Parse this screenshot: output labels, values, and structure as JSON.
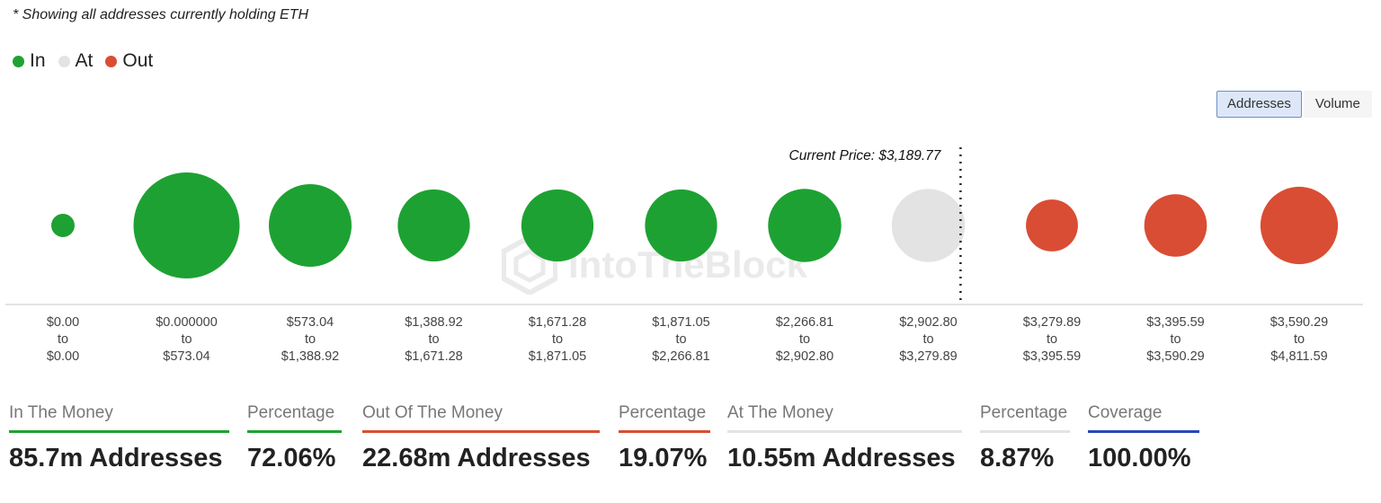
{
  "note": "* Showing all addresses currently holding ETH",
  "legend": [
    {
      "label": "In",
      "color": "#1ea133"
    },
    {
      "label": "At",
      "color": "#e3e3e3"
    },
    {
      "label": "Out",
      "color": "#d94d34"
    }
  ],
  "toggle": {
    "addresses_label": "Addresses",
    "volume_label": "Volume",
    "active": "Addresses"
  },
  "watermark": "IntoTheBlock",
  "chart_data": {
    "type": "bubble",
    "current_price_label": "Current Price: $3,189.77",
    "current_price": 3189.77,
    "categories": [
      {
        "from": "$0.00",
        "to": "$0.00",
        "status": "In",
        "size": 0.22
      },
      {
        "from": "$0.000000",
        "to": "$573.04",
        "status": "In",
        "size": 1.0
      },
      {
        "from": "$573.04",
        "to": "$1,388.92",
        "status": "In",
        "size": 0.78
      },
      {
        "from": "$1,388.92",
        "to": "$1,671.28",
        "status": "In",
        "size": 0.68
      },
      {
        "from": "$1,671.28",
        "to": "$1,871.05",
        "status": "In",
        "size": 0.68
      },
      {
        "from": "$1,871.05",
        "to": "$2,266.81",
        "status": "In",
        "size": 0.68
      },
      {
        "from": "$2,266.81",
        "to": "$2,902.80",
        "status": "In",
        "size": 0.69
      },
      {
        "from": "$2,902.80",
        "to": "$3,279.89",
        "status": "At",
        "size": 0.69
      },
      {
        "from": "$3,279.89",
        "to": "$3,395.59",
        "status": "Out",
        "size": 0.49
      },
      {
        "from": "$3,395.59",
        "to": "$3,590.29",
        "status": "Out",
        "size": 0.59
      },
      {
        "from": "$3,590.29",
        "to": "$4,811.59",
        "status": "Out",
        "size": 0.73
      }
    ],
    "to_word": "to"
  },
  "stats": [
    {
      "label": "In The Money",
      "value": "85.7m Addresses",
      "color": "#1ea133"
    },
    {
      "label": "Percentage",
      "value": "72.06%",
      "color": "#1ea133"
    },
    {
      "label": "Out Of The Money",
      "value": "22.68m Addresses",
      "color": "#d94d34"
    },
    {
      "label": "Percentage",
      "value": "19.07%",
      "color": "#d94d34"
    },
    {
      "label": "At The Money",
      "value": "10.55m Addresses",
      "color": "#e3e3e3"
    },
    {
      "label": "Percentage",
      "value": "8.87%",
      "color": "#e3e3e3"
    },
    {
      "label": "Coverage",
      "value": "100.00%",
      "color": "#2747b8"
    }
  ]
}
